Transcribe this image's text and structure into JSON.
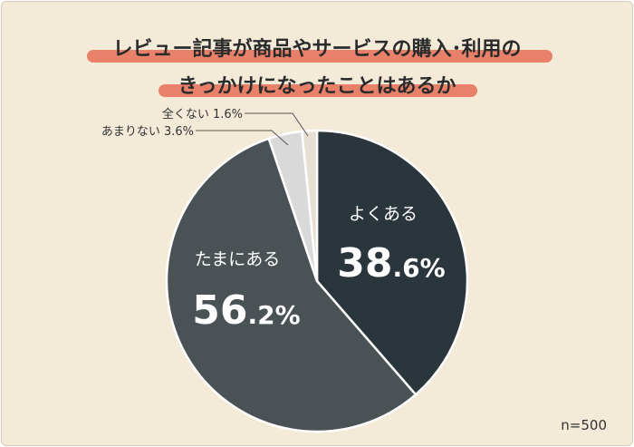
{
  "title": {
    "line1": "レビュー記事が商品やサービスの購入･利用の",
    "line2": "きっかけになったことはあるか"
  },
  "sample_size": "n=500",
  "chart_data": {
    "type": "pie",
    "title": "レビュー記事が商品やサービスの購入･利用のきっかけになったことはあるか",
    "slices": [
      {
        "label": "よくある",
        "value": 38.6,
        "color": "#2b363c"
      },
      {
        "label": "たまにある",
        "value": 56.2,
        "color": "#4a5255"
      },
      {
        "label": "あまりない",
        "value": 3.6,
        "color": "#d9d9d9"
      },
      {
        "label": "全くない",
        "value": 1.6,
        "color": "#e6e0d4"
      }
    ],
    "start": "12 o'clock",
    "direction": "clockwise",
    "external_labels": [
      "あまりない 3.6%",
      "全くない 1.6%"
    ]
  }
}
